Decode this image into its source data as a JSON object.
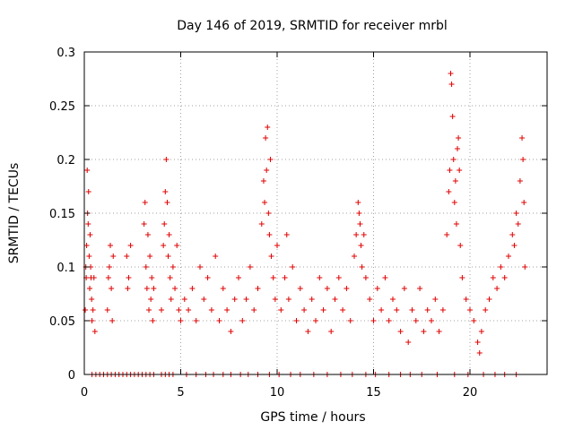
{
  "chart_data": {
    "type": "scatter",
    "title": "Day 146 of 2019, SRMTID for receiver mrbl",
    "xlabel": "GPS time / hours",
    "ylabel": "SRMTID / TECUs",
    "xlim": [
      0,
      24
    ],
    "ylim": [
      0,
      0.3
    ],
    "x_ticks": [
      0,
      5,
      10,
      15,
      20
    ],
    "x_tick_labels": [
      "0",
      "5",
      "10",
      "15",
      "20"
    ],
    "y_ticks": [
      0,
      0.05,
      0.1,
      0.15,
      0.2,
      0.25,
      0.3
    ],
    "y_tick_labels": [
      "0",
      "0.05",
      "0.1",
      "0.15",
      "0.2",
      "0.25",
      "0.3"
    ],
    "grid": true,
    "marker": "plus",
    "series": [
      {
        "name": "SRMTID",
        "color": "#e00000",
        "points": [
          [
            0.05,
            0.06
          ],
          [
            0.08,
            0.1
          ],
          [
            0.1,
            0.09
          ],
          [
            0.12,
            0.12
          ],
          [
            0.15,
            0.19
          ],
          [
            0.17,
            0.15
          ],
          [
            0.2,
            0.14
          ],
          [
            0.22,
            0.17
          ],
          [
            0.25,
            0.11
          ],
          [
            0.28,
            0.08
          ],
          [
            0.3,
            0.13
          ],
          [
            0.33,
            0.1
          ],
          [
            0.35,
            0.09
          ],
          [
            0.38,
            0.07
          ],
          [
            0.4,
            0.05
          ],
          [
            0.45,
            0.06
          ],
          [
            0.5,
            0.09
          ],
          [
            0.55,
            0.04
          ],
          [
            1.2,
            0.06
          ],
          [
            1.25,
            0.09
          ],
          [
            1.3,
            0.1
          ],
          [
            1.35,
            0.12
          ],
          [
            1.4,
            0.08
          ],
          [
            1.45,
            0.05
          ],
          [
            1.5,
            0.11
          ],
          [
            2.2,
            0.11
          ],
          [
            2.25,
            0.08
          ],
          [
            2.3,
            0.09
          ],
          [
            2.4,
            0.12
          ],
          [
            3.1,
            0.14
          ],
          [
            3.15,
            0.16
          ],
          [
            3.2,
            0.1
          ],
          [
            3.25,
            0.08
          ],
          [
            3.3,
            0.13
          ],
          [
            3.35,
            0.06
          ],
          [
            3.4,
            0.11
          ],
          [
            3.45,
            0.07
          ],
          [
            3.5,
            0.09
          ],
          [
            3.55,
            0.05
          ],
          [
            3.6,
            0.08
          ],
          [
            4.0,
            0.06
          ],
          [
            4.1,
            0.12
          ],
          [
            4.15,
            0.14
          ],
          [
            4.2,
            0.17
          ],
          [
            4.25,
            0.2
          ],
          [
            4.3,
            0.16
          ],
          [
            4.35,
            0.11
          ],
          [
            4.4,
            0.13
          ],
          [
            4.45,
            0.09
          ],
          [
            4.5,
            0.07
          ],
          [
            4.6,
            0.1
          ],
          [
            4.7,
            0.08
          ],
          [
            4.8,
            0.12
          ],
          [
            4.9,
            0.06
          ],
          [
            5.0,
            0.05
          ],
          [
            5.2,
            0.07
          ],
          [
            5.4,
            0.06
          ],
          [
            5.6,
            0.08
          ],
          [
            5.8,
            0.05
          ],
          [
            6.0,
            0.1
          ],
          [
            6.2,
            0.07
          ],
          [
            6.4,
            0.09
          ],
          [
            6.6,
            0.06
          ],
          [
            6.8,
            0.11
          ],
          [
            7.0,
            0.05
          ],
          [
            7.2,
            0.08
          ],
          [
            7.4,
            0.06
          ],
          [
            7.6,
            0.04
          ],
          [
            7.8,
            0.07
          ],
          [
            8.0,
            0.09
          ],
          [
            8.2,
            0.05
          ],
          [
            8.4,
            0.07
          ],
          [
            8.6,
            0.1
          ],
          [
            8.8,
            0.06
          ],
          [
            9.0,
            0.08
          ],
          [
            9.2,
            0.14
          ],
          [
            9.3,
            0.18
          ],
          [
            9.35,
            0.16
          ],
          [
            9.4,
            0.22
          ],
          [
            9.45,
            0.19
          ],
          [
            9.5,
            0.23
          ],
          [
            9.55,
            0.15
          ],
          [
            9.6,
            0.13
          ],
          [
            9.65,
            0.2
          ],
          [
            9.7,
            0.11
          ],
          [
            9.8,
            0.09
          ],
          [
            9.9,
            0.07
          ],
          [
            10.0,
            0.12
          ],
          [
            10.2,
            0.06
          ],
          [
            10.4,
            0.09
          ],
          [
            10.5,
            0.13
          ],
          [
            10.6,
            0.07
          ],
          [
            10.8,
            0.1
          ],
          [
            11.0,
            0.05
          ],
          [
            11.2,
            0.08
          ],
          [
            11.4,
            0.06
          ],
          [
            11.6,
            0.04
          ],
          [
            11.8,
            0.07
          ],
          [
            12.0,
            0.05
          ],
          [
            12.2,
            0.09
          ],
          [
            12.4,
            0.06
          ],
          [
            12.6,
            0.08
          ],
          [
            12.8,
            0.04
          ],
          [
            13.0,
            0.07
          ],
          [
            13.2,
            0.09
          ],
          [
            13.4,
            0.06
          ],
          [
            13.6,
            0.08
          ],
          [
            13.8,
            0.05
          ],
          [
            14.0,
            0.11
          ],
          [
            14.1,
            0.13
          ],
          [
            14.2,
            0.16
          ],
          [
            14.25,
            0.15
          ],
          [
            14.3,
            0.14
          ],
          [
            14.35,
            0.12
          ],
          [
            14.4,
            0.1
          ],
          [
            14.5,
            0.13
          ],
          [
            14.6,
            0.09
          ],
          [
            14.8,
            0.07
          ],
          [
            15.0,
            0.05
          ],
          [
            15.2,
            0.08
          ],
          [
            15.4,
            0.06
          ],
          [
            15.6,
            0.09
          ],
          [
            15.8,
            0.05
          ],
          [
            16.0,
            0.07
          ],
          [
            16.2,
            0.06
          ],
          [
            16.4,
            0.04
          ],
          [
            16.6,
            0.08
          ],
          [
            16.8,
            0.03
          ],
          [
            17.0,
            0.06
          ],
          [
            17.2,
            0.05
          ],
          [
            17.4,
            0.08
          ],
          [
            17.6,
            0.04
          ],
          [
            17.8,
            0.06
          ],
          [
            18.0,
            0.05
          ],
          [
            18.2,
            0.07
          ],
          [
            18.4,
            0.04
          ],
          [
            18.6,
            0.06
          ],
          [
            18.8,
            0.13
          ],
          [
            18.9,
            0.17
          ],
          [
            18.95,
            0.19
          ],
          [
            19.0,
            0.28
          ],
          [
            19.05,
            0.27
          ],
          [
            19.1,
            0.24
          ],
          [
            19.15,
            0.2
          ],
          [
            19.2,
            0.16
          ],
          [
            19.25,
            0.18
          ],
          [
            19.3,
            0.14
          ],
          [
            19.35,
            0.21
          ],
          [
            19.4,
            0.22
          ],
          [
            19.45,
            0.19
          ],
          [
            19.5,
            0.12
          ],
          [
            19.6,
            0.09
          ],
          [
            19.8,
            0.07
          ],
          [
            20.0,
            0.06
          ],
          [
            20.2,
            0.05
          ],
          [
            20.4,
            0.03
          ],
          [
            20.5,
            0.02
          ],
          [
            20.6,
            0.04
          ],
          [
            20.8,
            0.06
          ],
          [
            21.0,
            0.07
          ],
          [
            21.2,
            0.09
          ],
          [
            21.4,
            0.08
          ],
          [
            21.6,
            0.1
          ],
          [
            21.8,
            0.09
          ],
          [
            22.0,
            0.11
          ],
          [
            22.2,
            0.13
          ],
          [
            22.3,
            0.12
          ],
          [
            22.4,
            0.15
          ],
          [
            22.5,
            0.14
          ],
          [
            22.6,
            0.18
          ],
          [
            22.7,
            0.22
          ],
          [
            22.75,
            0.2
          ],
          [
            22.8,
            0.16
          ],
          [
            22.85,
            0.1
          ]
        ],
        "zero_hours": [
          0.4,
          0.6,
          0.8,
          1.0,
          1.2,
          1.4,
          1.6,
          1.8,
          2.0,
          2.2,
          2.4,
          2.6,
          2.8,
          3.0,
          3.2,
          3.4,
          3.6,
          4.0,
          4.2,
          4.4,
          4.6,
          5.3,
          5.8,
          6.3,
          6.7,
          7.2,
          7.6,
          8.1,
          8.5,
          9.0,
          9.6,
          10.1,
          10.7,
          11.2,
          11.9,
          12.6,
          13.3,
          13.9,
          14.6,
          15.1,
          15.8,
          16.4,
          16.9,
          17.5,
          18.3,
          19.2,
          19.9,
          20.7,
          21.3,
          21.8,
          22.4
        ]
      }
    ]
  }
}
